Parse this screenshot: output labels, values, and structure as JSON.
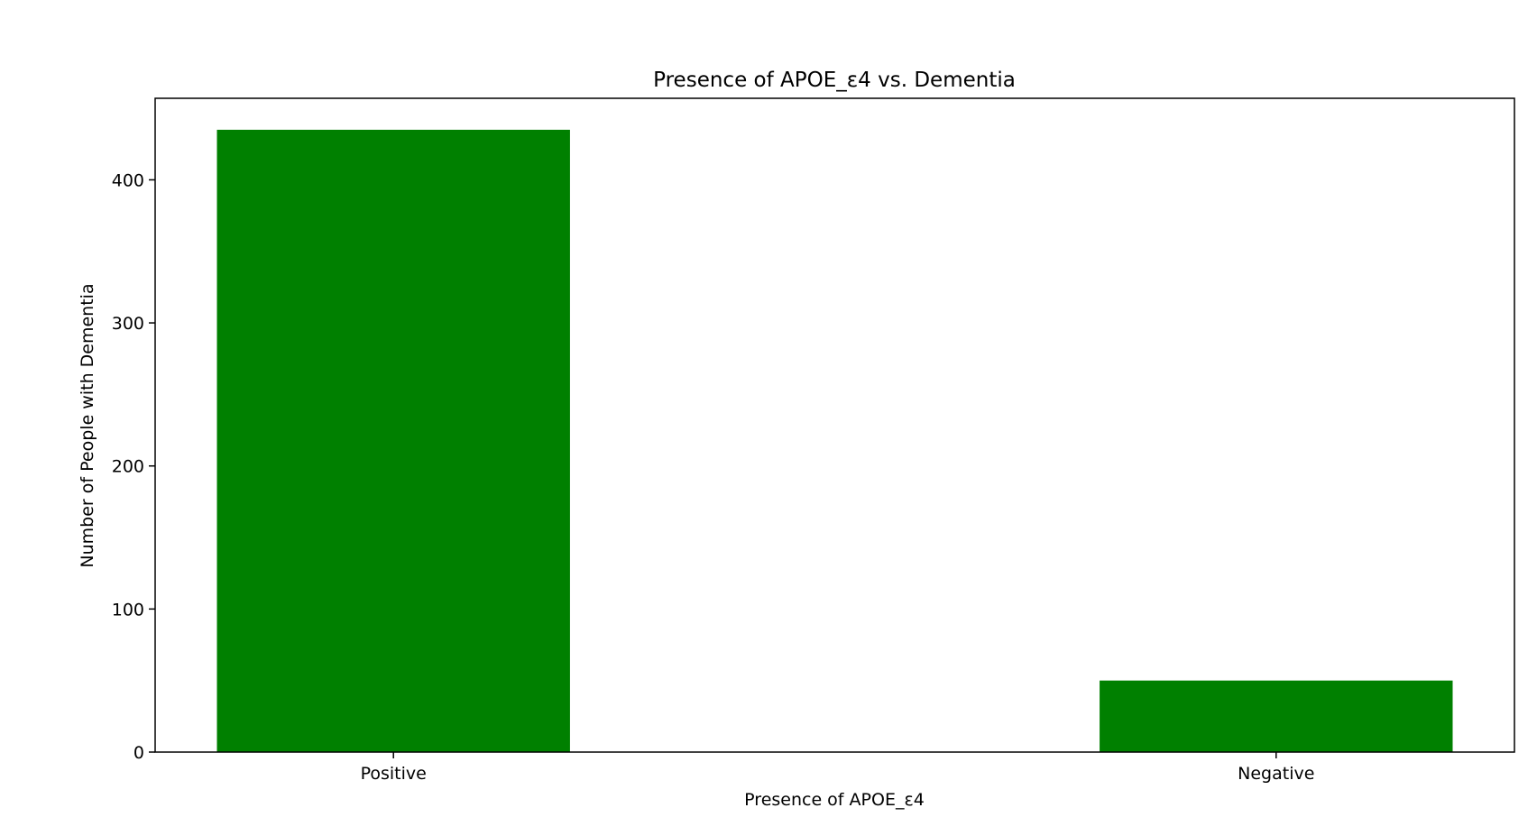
{
  "chart_data": {
    "type": "bar",
    "title": "Presence of APOE_ε4 vs. Dementia",
    "xlabel": "Presence of APOE_ε4",
    "ylabel": "Number of People with Dementia",
    "categories": [
      "Positive",
      "Negative"
    ],
    "values": [
      435,
      50
    ],
    "ylim": [
      0,
      457
    ],
    "yticks": [
      0,
      100,
      200,
      300,
      400
    ],
    "bar_color": "#008000",
    "grid": false,
    "legend": "none"
  }
}
